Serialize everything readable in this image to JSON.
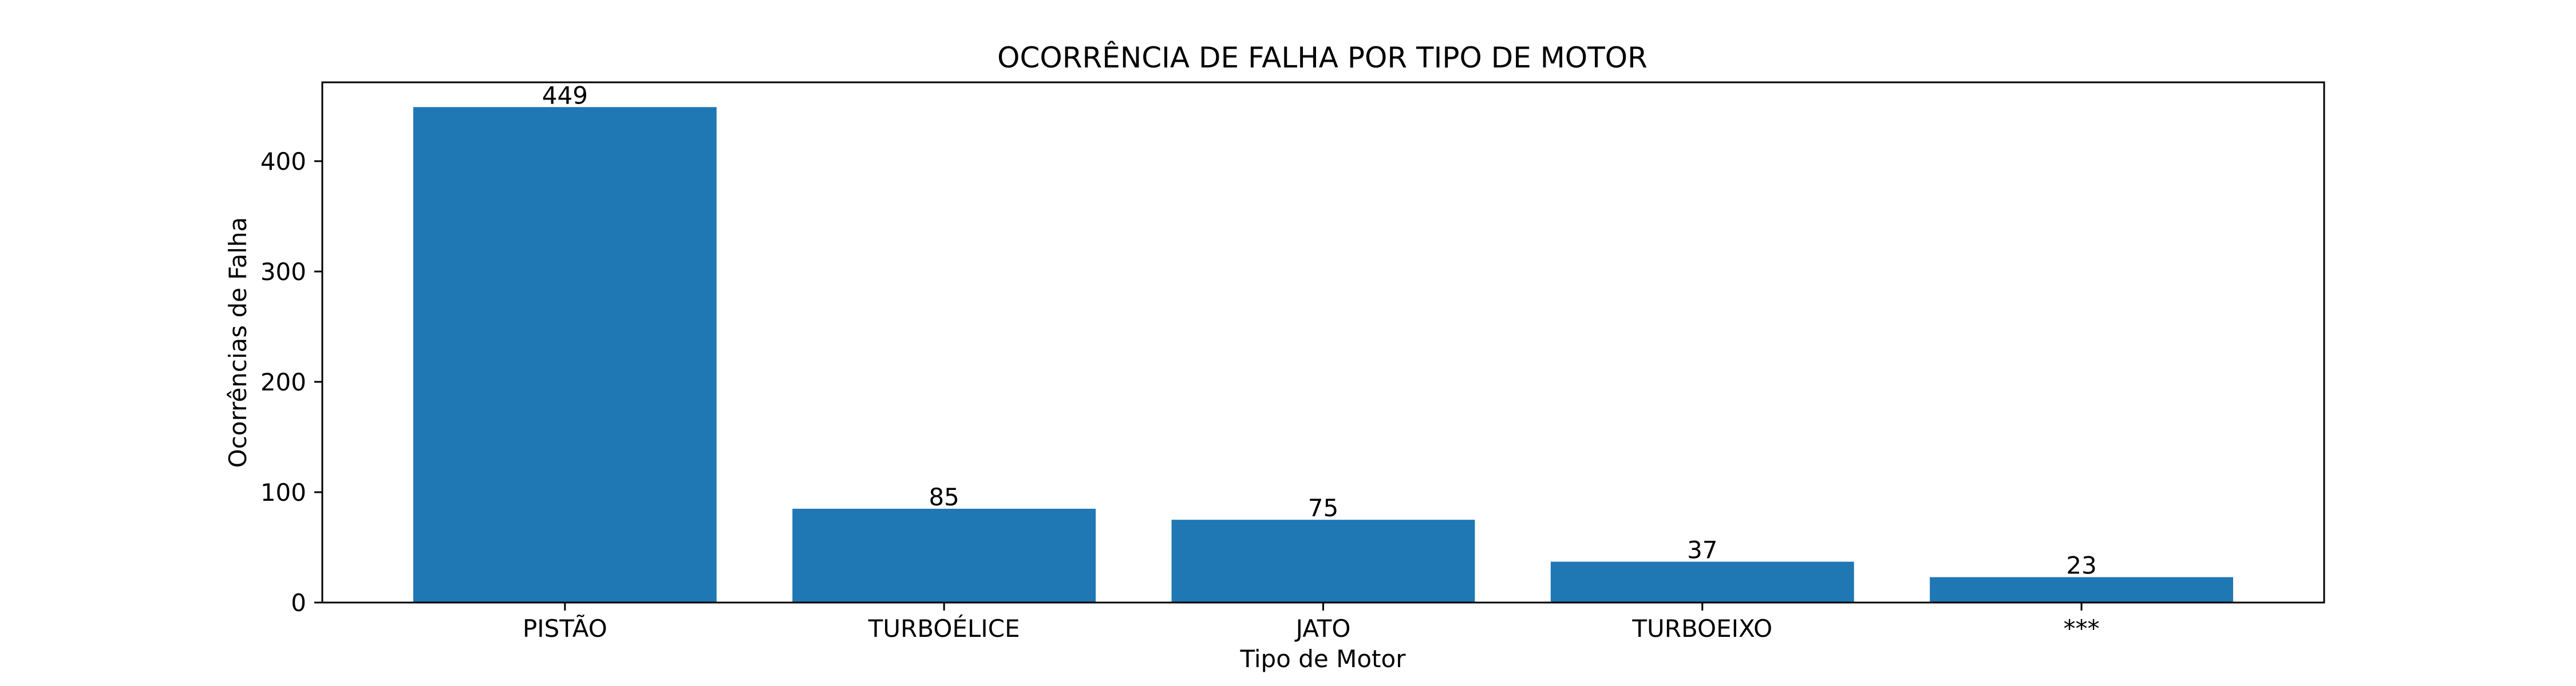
{
  "chart_data": {
    "type": "bar",
    "title": "OCORRÊNCIA DE FALHA POR TIPO DE MOTOR",
    "xlabel": "Tipo de Motor",
    "ylabel": "Ocorrências de Falha",
    "categories": [
      "PISTÃO",
      "TURBOÉLICE",
      "JATO",
      "TURBOEIXO",
      "***"
    ],
    "values": [
      449,
      85,
      75,
      37,
      23
    ],
    "data_labels": [
      "449",
      "85",
      "75",
      "37",
      "23"
    ],
    "yticks": [
      0,
      100,
      200,
      300,
      400
    ],
    "ylim": [
      0,
      471.45
    ],
    "grid": false,
    "legend": "none",
    "bar_color": "#1f77b4"
  }
}
